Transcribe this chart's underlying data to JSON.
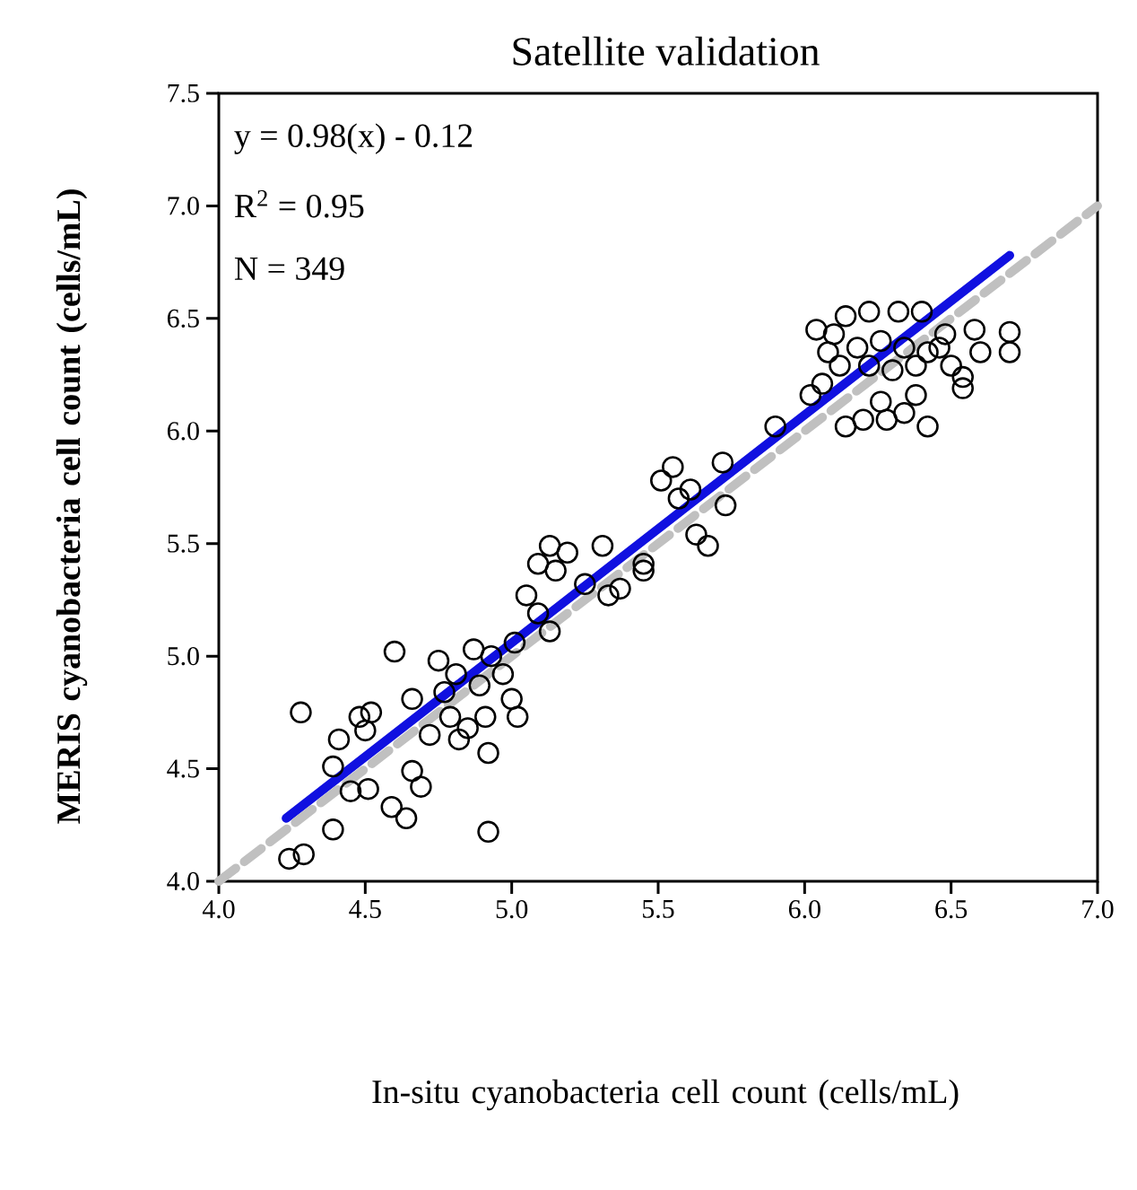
{
  "chart_data": {
    "type": "scatter",
    "title": "Satellite validation",
    "xlabel": "In-situ cyanobacteria cell count (cells/mL)",
    "ylabel": "MERIS cyanobacteria cell count (cells/mL)",
    "xlim": [
      4.0,
      7.0
    ],
    "ylim": [
      4.0,
      7.5
    ],
    "xticks": [
      {
        "value": 4.0,
        "label": "4.0"
      },
      {
        "value": 4.5,
        "label": "4.5"
      },
      {
        "value": 5.0,
        "label": "5.0"
      },
      {
        "value": 5.5,
        "label": "5.5"
      },
      {
        "value": 6.0,
        "label": "6.0"
      },
      {
        "value": 6.5,
        "label": "6.5"
      },
      {
        "value": 7.0,
        "label": "7.0"
      }
    ],
    "yticks": [
      {
        "value": 4.0,
        "label": "4.0"
      },
      {
        "value": 4.5,
        "label": "4.5"
      },
      {
        "value": 5.0,
        "label": "5.0"
      },
      {
        "value": 5.5,
        "label": "5.5"
      },
      {
        "value": 6.0,
        "label": "6.0"
      },
      {
        "value": 6.5,
        "label": "6.5"
      },
      {
        "value": 7.0,
        "label": "7.0"
      },
      {
        "value": 7.5,
        "label": "7.5"
      }
    ],
    "annotations": [
      "y = 0.98(x) - 0.12",
      "R$^{2}$ = 0.95",
      "N = 349"
    ],
    "grid": false,
    "series": [
      {
        "marker": "circle",
        "color": "#000000",
        "x": [
          4.28,
          4.24,
          4.29,
          4.39,
          4.39,
          4.41,
          4.48,
          4.52,
          4.5,
          4.51,
          4.45,
          4.59,
          4.64,
          4.66,
          4.69,
          4.6,
          4.66,
          4.72,
          4.75,
          4.77,
          4.79,
          4.82,
          4.87,
          4.89,
          4.91,
          4.92,
          4.92,
          4.93,
          4.97,
          5.0,
          5.02,
          5.01,
          4.85,
          4.81,
          5.05,
          5.09,
          5.13,
          5.15,
          5.19,
          5.25,
          5.31,
          5.33,
          5.37,
          5.45,
          5.13,
          5.09,
          5.51,
          5.55,
          5.57,
          5.63,
          5.67,
          5.72,
          5.73,
          5.45,
          5.61,
          5.9,
          6.04,
          6.06,
          6.02,
          6.14,
          6.2,
          6.28,
          6.34,
          6.42,
          6.14,
          6.22,
          6.32,
          6.4,
          6.48,
          6.58,
          6.6,
          6.54,
          6.54,
          6.7,
          6.7,
          6.18,
          6.26,
          6.34,
          6.42,
          6.12,
          6.22,
          6.3,
          6.38,
          6.46,
          6.26,
          6.38,
          6.5,
          6.08,
          6.1
        ],
        "values": [
          4.75,
          4.1,
          4.12,
          4.23,
          4.51,
          4.63,
          4.73,
          4.75,
          4.67,
          4.41,
          4.4,
          4.33,
          4.28,
          4.49,
          4.42,
          5.02,
          4.81,
          4.65,
          4.98,
          4.84,
          4.73,
          4.63,
          5.03,
          4.87,
          4.73,
          4.57,
          4.22,
          5.0,
          4.92,
          4.81,
          4.73,
          5.06,
          4.68,
          4.92,
          5.27,
          5.41,
          5.49,
          5.38,
          5.46,
          5.32,
          5.49,
          5.27,
          5.3,
          5.41,
          5.11,
          5.19,
          5.78,
          5.84,
          5.7,
          5.54,
          5.49,
          5.86,
          5.67,
          5.38,
          5.74,
          6.02,
          6.45,
          6.21,
          6.16,
          6.02,
          6.05,
          6.05,
          6.08,
          6.02,
          6.51,
          6.53,
          6.53,
          6.53,
          6.43,
          6.45,
          6.35,
          6.24,
          6.19,
          6.44,
          6.35,
          6.37,
          6.4,
          6.37,
          6.35,
          6.29,
          6.29,
          6.27,
          6.29,
          6.37,
          6.13,
          6.16,
          6.29,
          6.35,
          6.43
        ]
      },
      {
        "type": "line",
        "color": "#1010e0",
        "line_style": "solid",
        "x": [
          4.23,
          6.7
        ],
        "values": [
          4.28,
          6.78
        ]
      },
      {
        "type": "line",
        "color": "#c0c0c0",
        "line_style": "dashed",
        "x": [
          4.0,
          7.0
        ],
        "values": [
          4.0,
          7.0
        ]
      }
    ]
  }
}
